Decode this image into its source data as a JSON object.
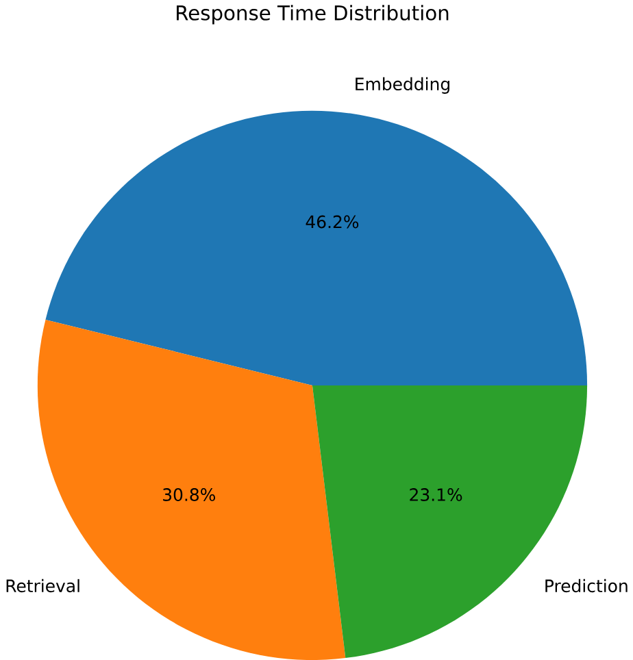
{
  "chart_data": {
    "type": "pie",
    "title": "Response Time Distribution",
    "categories": [
      "Embedding",
      "Retrieval",
      "Prediction"
    ],
    "values": [
      46.2,
      30.8,
      23.1
    ],
    "value_labels": [
      "46.2%",
      "30.8%",
      "23.1%"
    ],
    "colors": [
      "#1f77b4",
      "#ff7f0e",
      "#2ca02c"
    ]
  }
}
